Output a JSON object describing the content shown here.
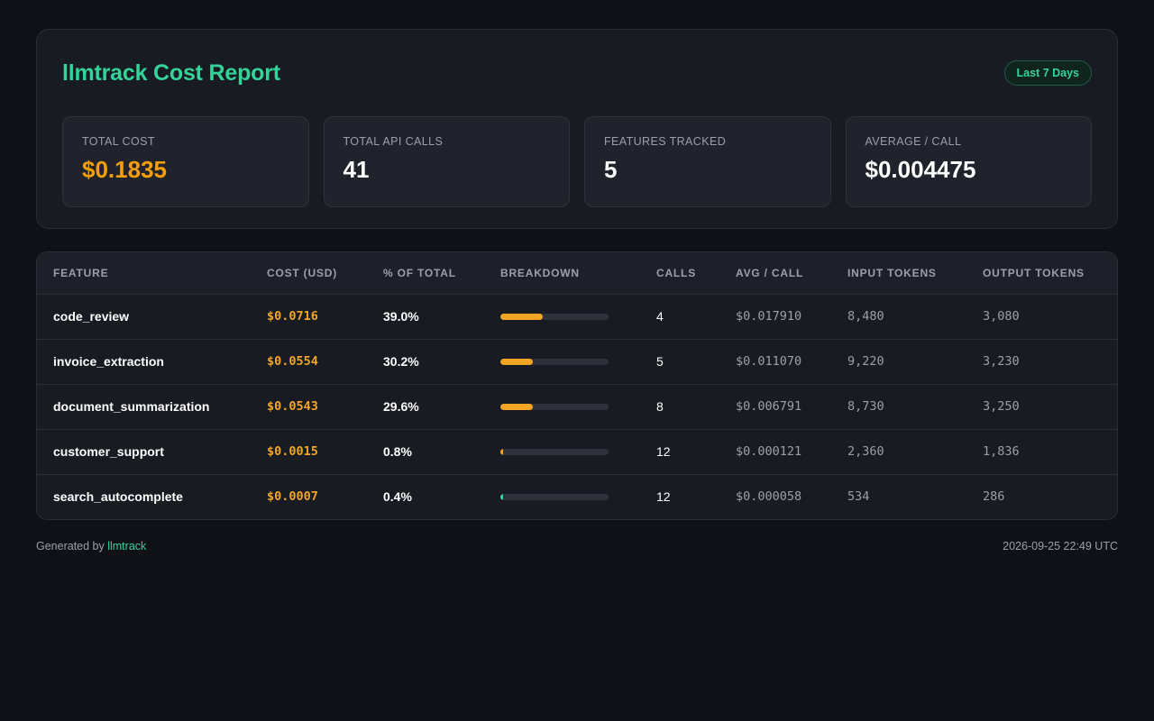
{
  "report": {
    "title": "llmtrack Cost Report",
    "range_badge": "Last 7 Days"
  },
  "stats": [
    {
      "label": "Total Cost",
      "value": "$0.1835"
    },
    {
      "label": "Total API Calls",
      "value": "41"
    },
    {
      "label": "Features Tracked",
      "value": "5"
    },
    {
      "label": "Average / Call",
      "value": "$0.004475"
    }
  ],
  "table": {
    "headers": [
      "Feature",
      "Cost (USD)",
      "% of Total",
      "Breakdown",
      "Calls",
      "Avg / Call",
      "Input Tokens",
      "Output Tokens"
    ],
    "rows": [
      {
        "feature": "code_review",
        "cost": "$0.0716",
        "pct": "39.0%",
        "share": 39.0,
        "bar_color": "#f5a524",
        "calls": "4",
        "avg": "$0.017910",
        "input": "8,480",
        "output": "3,080"
      },
      {
        "feature": "invoice_extraction",
        "cost": "$0.0554",
        "pct": "30.2%",
        "share": 30.2,
        "bar_color": "#f5a524",
        "calls": "5",
        "avg": "$0.011070",
        "input": "9,220",
        "output": "3,230"
      },
      {
        "feature": "document_summarization",
        "cost": "$0.0543",
        "pct": "29.6%",
        "share": 29.6,
        "bar_color": "#f5a524",
        "calls": "8",
        "avg": "$0.006791",
        "input": "8,730",
        "output": "3,250"
      },
      {
        "feature": "customer_support",
        "cost": "$0.0015",
        "pct": "0.8%",
        "share": 0.8,
        "bar_color": "#f5a524",
        "calls": "12",
        "avg": "$0.000121",
        "input": "2,360",
        "output": "1,836"
      },
      {
        "feature": "search_autocomplete",
        "cost": "$0.0007",
        "pct": "0.4%",
        "share": 0.4,
        "bar_color": "#34d399",
        "calls": "12",
        "avg": "$0.000058",
        "input": "534",
        "output": "286"
      }
    ]
  },
  "footer": {
    "generated_prefix": "Generated by ",
    "brand": "llmtrack",
    "timestamp": "2026-09-25 22:49 UTC"
  },
  "colors": {
    "accent_green": "#34d399",
    "accent_amber": "#f59e0b"
  }
}
